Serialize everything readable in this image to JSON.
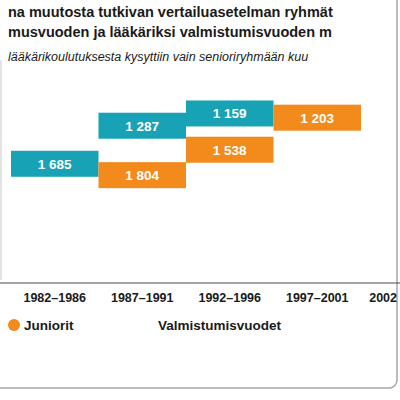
{
  "chart_data": {
    "type": "bar",
    "title": [
      "na muutosta tutkivan vertailuasetelman ryhmät",
      "musvuoden ja lääkäriksi valmistumisvuoden m"
    ],
    "subtitle": "lääkärikoulutuksesta kysyttiin vain senioriryhmään kuu",
    "x_label": "Valmistumisvuodet",
    "categories": [
      "1982–1986",
      "1987–1991",
      "1992–1996",
      "1997–2001",
      "2002"
    ],
    "series": [
      {
        "color": "#17a2b5",
        "values": [
          1685,
          1287,
          1159,
          null,
          null
        ],
        "value_labels": [
          "1 685",
          "1 287",
          "1 159",
          null,
          null
        ]
      },
      {
        "name": "Juniorit",
        "color": "#f28a1c",
        "values": [
          null,
          1804,
          1538,
          1203,
          null
        ],
        "value_labels": [
          null,
          "1 804",
          "1 538",
          "1 203",
          null
        ]
      }
    ],
    "ylim": [
      2900,
      600
    ],
    "tick_labels": "x",
    "data_labels": true,
    "legend": "bottom-left"
  }
}
